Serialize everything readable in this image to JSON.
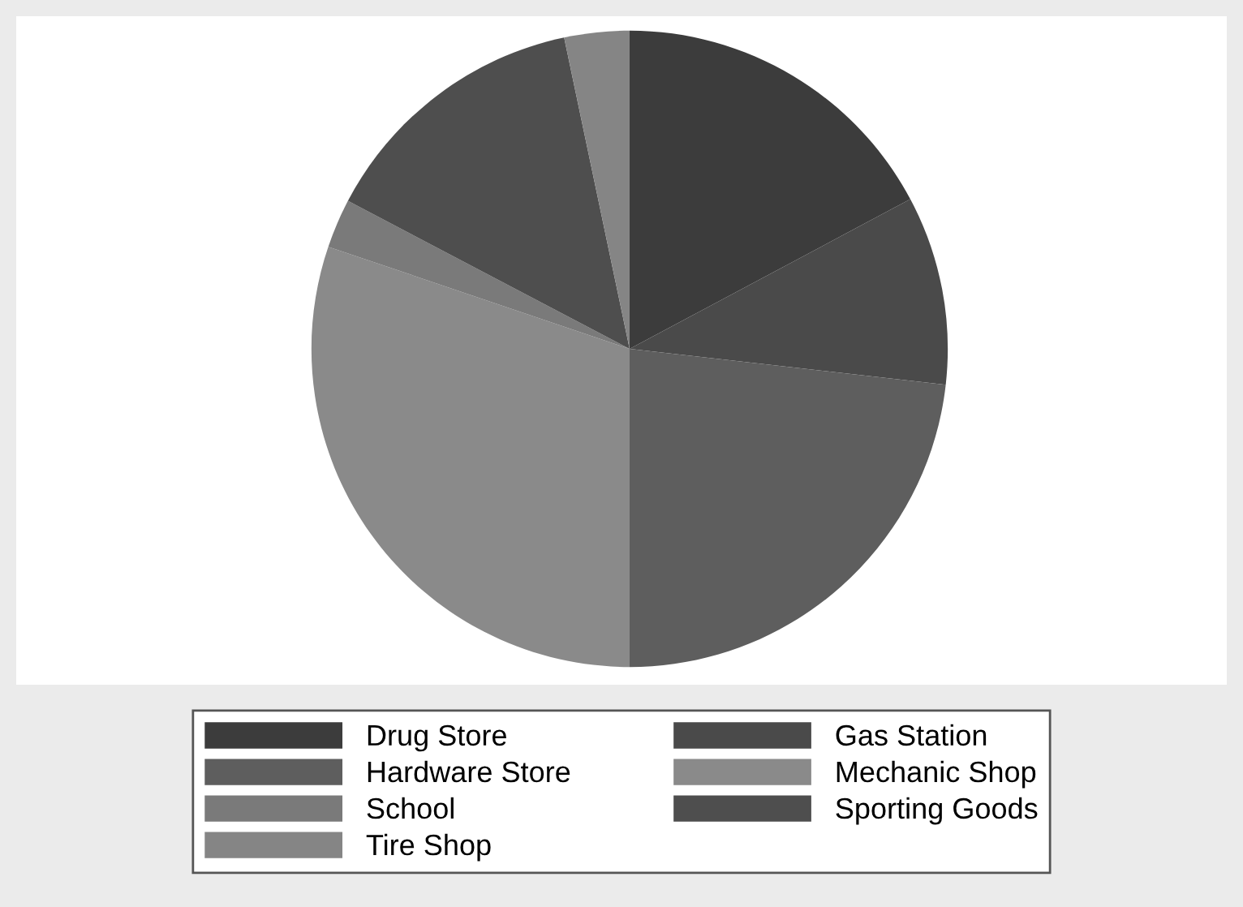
{
  "chart_data": {
    "type": "pie",
    "categories": [
      "Drug Store",
      "Gas Station",
      "Hardware Store",
      "Mechanic Shop",
      "School",
      "Sporting Goods",
      "Tire Shop"
    ],
    "values": [
      17.2,
      9.6,
      23.2,
      30.2,
      2.5,
      14.0,
      3.3
    ],
    "colors": [
      "#3c3c3c",
      "#4a4a4a",
      "#5e5e5e",
      "#8a8a8a",
      "#7a7a7a",
      "#4e4e4e",
      "#858585"
    ],
    "legend": "bottom"
  }
}
